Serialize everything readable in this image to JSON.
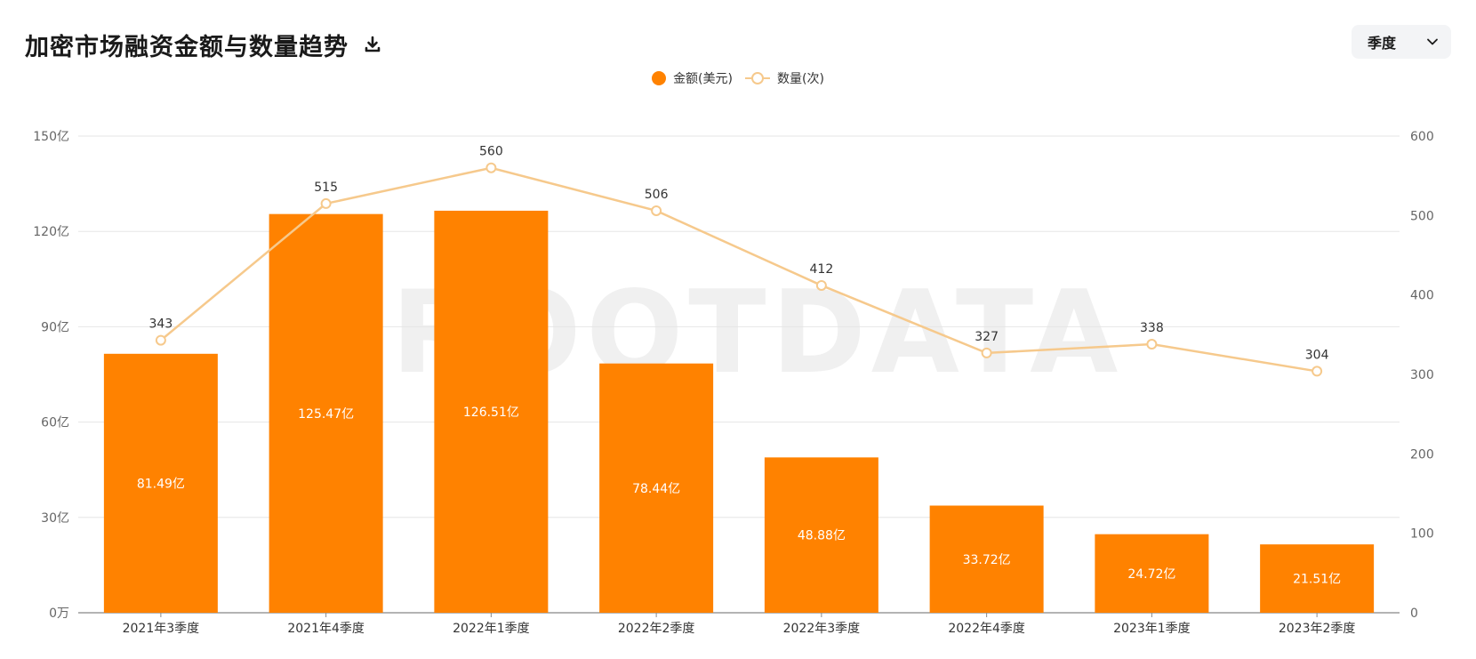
{
  "header": {
    "title": "加密市场融资金额与数量趋势"
  },
  "period_select": {
    "value": "季度"
  },
  "watermark": "ROOTDATA",
  "colors": {
    "bar": "#ff8200",
    "line": "#f6c98c",
    "grid": "#e6e6e6",
    "axis_text": "#666666"
  },
  "chart_data": {
    "type": "bar",
    "categories": [
      "2021年3季度",
      "2021年4季度",
      "2022年1季度",
      "2022年2季度",
      "2022年3季度",
      "2022年4季度",
      "2023年1季度",
      "2023年2季度"
    ],
    "series": [
      {
        "name": "金额(美元)",
        "type": "bar",
        "axis": "left",
        "values": [
          81.49,
          125.47,
          126.51,
          78.44,
          48.88,
          33.72,
          24.72,
          21.51
        ],
        "labels": [
          "81.49亿",
          "125.47亿",
          "126.51亿",
          "78.44亿",
          "48.88亿",
          "33.72亿",
          "24.72亿",
          "21.51亿"
        ]
      },
      {
        "name": "数量(次)",
        "type": "line",
        "axis": "right",
        "values": [
          343,
          515,
          560,
          506,
          412,
          327,
          338,
          304
        ],
        "labels": [
          "343",
          "515",
          "560",
          "506",
          "412",
          "327",
          "338",
          "304"
        ]
      }
    ],
    "y_left": {
      "ylim": [
        0,
        150
      ],
      "ticks": [
        0,
        30,
        60,
        90,
        120,
        150
      ],
      "tick_labels": [
        "0万",
        "30亿",
        "60亿",
        "90亿",
        "120亿",
        "150亿"
      ]
    },
    "y_right": {
      "ylim": [
        0,
        600
      ],
      "ticks": [
        0,
        100,
        200,
        300,
        400,
        500,
        600
      ],
      "tick_labels": [
        "0",
        "100",
        "200",
        "300",
        "400",
        "500",
        "600"
      ]
    },
    "grid": true,
    "legend_position": "top-center"
  }
}
